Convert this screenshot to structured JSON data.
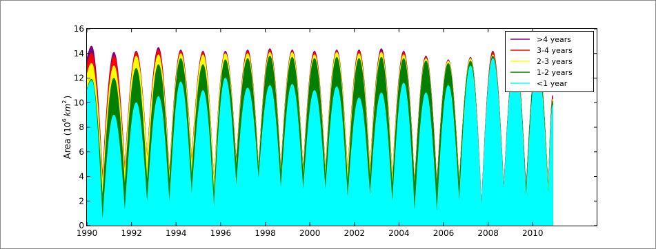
{
  "chart_data": {
    "type": "area",
    "title": "",
    "xlabel": "",
    "ylabel": "Area",
    "ylabel_unit_base": "10",
    "ylabel_unit_exp": "6",
    "ylabel_unit_km": "km",
    "ylabel_unit_km_exp": "2",
    "xlim": [
      1990,
      2012.9
    ],
    "ylim": [
      0,
      16
    ],
    "x_ticks": [
      "1990",
      "1992",
      "1994",
      "1996",
      "1998",
      "2000",
      "2002",
      "2004",
      "2006",
      "2008",
      "2010"
    ],
    "y_ticks": [
      "0",
      "2",
      "4",
      "6",
      "8",
      "10",
      "12",
      "14",
      "16"
    ],
    "legend_position": "top-right",
    "grid": false,
    "years": [
      1990,
      1991,
      1992,
      1993,
      1994,
      1995,
      1996,
      1997,
      1998,
      1999,
      2000,
      2001,
      2002,
      2003,
      2004,
      2005,
      2006,
      2007,
      2008,
      2009,
      2010
    ],
    "series": [
      {
        "name": "<1 year",
        "color": "#00ffff",
        "max": [
          11.8,
          9.0,
          10.0,
          10.5,
          11.7,
          11.0,
          12.0,
          11.2,
          11.4,
          11.5,
          11.0,
          11.3,
          10.4,
          10.8,
          11.6,
          10.8,
          11.4,
          13.0,
          13.6,
          13.6,
          13.2
        ],
        "min": [
          0.2,
          1.0,
          1.6,
          1.6,
          2.3,
          1.2,
          3.0,
          3.6,
          2.8,
          2.6,
          2.6,
          2.0,
          2.2,
          1.6,
          0.9,
          0.8,
          1.6,
          1.3,
          2.6,
          2.0,
          2.1
        ]
      },
      {
        "name": "1-2 years",
        "color": "#008000",
        "max": [
          11.9,
          12.0,
          12.8,
          13.1,
          13.6,
          13.1,
          13.5,
          13.6,
          13.8,
          13.7,
          13.6,
          13.7,
          13.6,
          13.7,
          13.6,
          13.4,
          13.2,
          13.4,
          13.8,
          13.8,
          13.9
        ],
        "min": [
          2.2,
          3.1,
          3.4,
          3.4,
          3.9,
          2.3,
          4.7,
          4.4,
          4.1,
          3.9,
          3.8,
          3.2,
          3.6,
          3.0,
          3.1,
          3.0,
          3.1,
          1.3,
          2.7,
          2.6,
          2.3
        ]
      },
      {
        "name": "2-3 years",
        "color": "#ffff00",
        "max": [
          13.2,
          13.0,
          13.8,
          13.9,
          14.0,
          13.9,
          14.0,
          14.0,
          14.1,
          14.1,
          13.9,
          14.1,
          14.0,
          14.1,
          13.9,
          13.6,
          13.4,
          13.6,
          13.9,
          13.9,
          13.9
        ],
        "min": [
          3.5,
          4.3,
          5.3,
          4.0,
          5.0,
          3.3,
          5.0,
          4.7,
          4.4,
          4.3,
          4.3,
          4.1,
          4.3,
          3.7,
          3.4,
          3.2,
          3.4,
          1.4,
          2.8,
          2.7,
          2.8
        ]
      },
      {
        "name": "3-4 years",
        "color": "#ff0000",
        "max": [
          14.0,
          13.8,
          14.1,
          14.3,
          14.2,
          14.1,
          14.1,
          14.2,
          14.3,
          14.2,
          14.1,
          14.2,
          14.2,
          14.2,
          14.1,
          13.7,
          13.4,
          13.6,
          14.1,
          14.0,
          13.9
        ],
        "min": [
          3.9,
          4.6,
          5.4,
          4.1,
          5.2,
          3.4,
          5.1,
          4.7,
          4.5,
          4.4,
          4.4,
          4.2,
          4.4,
          3.8,
          3.4,
          3.3,
          3.4,
          1.5,
          2.9,
          2.8,
          2.9
        ]
      },
      {
        "name": ">4 years",
        "color": "#800080",
        "max": [
          14.6,
          14.1,
          14.2,
          14.5,
          14.3,
          14.2,
          14.2,
          14.3,
          14.4,
          14.3,
          14.2,
          14.3,
          14.3,
          14.4,
          14.2,
          13.8,
          13.5,
          13.7,
          14.2,
          14.1,
          14.0
        ],
        "min": [
          4.0,
          4.7,
          5.5,
          4.2,
          5.3,
          3.5,
          5.2,
          4.8,
          4.6,
          4.5,
          4.5,
          4.3,
          4.5,
          3.9,
          3.5,
          3.4,
          3.5,
          1.6,
          3.0,
          2.9,
          3.0
        ]
      }
    ],
    "end_value": {
      "x": 2010.9,
      "<1 year": 9.8,
      ">4 years": 10.6
    }
  }
}
